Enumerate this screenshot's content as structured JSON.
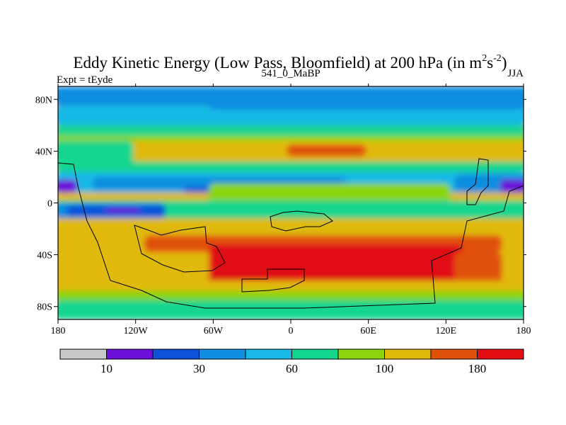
{
  "chart_data": {
    "type": "heatmap",
    "title": "Eddy Kinetic Energy (Low Pass, Bloomfield) at 200 hPa (in m",
    "title_units": {
      "sup1": "2",
      "mid": "s",
      "sup2": "-2",
      "close": ")"
    },
    "subtitle_center": "541_0_MaBP",
    "subtitle_left": "Expt = tEyde",
    "subtitle_right": "JJA",
    "x_ticks": [
      {
        "value": -180,
        "label": "180"
      },
      {
        "value": -120,
        "label": "120W"
      },
      {
        "value": -60,
        "label": "60W"
      },
      {
        "value": 0,
        "label": "0"
      },
      {
        "value": 60,
        "label": "60E"
      },
      {
        "value": 120,
        "label": "120E"
      },
      {
        "value": 180,
        "label": "180"
      }
    ],
    "y_ticks": [
      {
        "value": 80,
        "label": "80N"
      },
      {
        "value": 40,
        "label": "40N"
      },
      {
        "value": 0,
        "label": "0"
      },
      {
        "value": -40,
        "label": "40S"
      },
      {
        "value": -80,
        "label": "80S"
      }
    ],
    "xlim": [
      -180,
      180
    ],
    "ylim": [
      -90,
      90
    ],
    "levels_colors": [
      "#c8c8c8",
      "#6a10d8",
      "#0f50d9",
      "#118ee0",
      "#19b9e6",
      "#13d58e",
      "#8ad50d",
      "#e0b90b",
      "#e0510b",
      "#e00d12"
    ],
    "colorbar_labels": [
      {
        "after_box": 1,
        "label": "10"
      },
      {
        "after_box": 3,
        "label": "30"
      },
      {
        "after_box": 5,
        "label": "60"
      },
      {
        "after_box": 7,
        "label": "100"
      },
      {
        "after_box": 9,
        "label": "180"
      }
    ],
    "regions": [
      {
        "level": 7,
        "lon": [
          -180,
          180
        ],
        "lat": [
          -90,
          90
        ]
      },
      {
        "level": 3,
        "lon": [
          -180,
          180
        ],
        "lat": [
          75,
          90
        ]
      },
      {
        "level": 4,
        "lon": [
          -180,
          180
        ],
        "lat": [
          60,
          75
        ]
      },
      {
        "level": 5,
        "lon": [
          -180,
          180
        ],
        "lat": [
          52,
          60
        ]
      },
      {
        "level": 6,
        "lon": [
          -180,
          180
        ],
        "lat": [
          48,
          52
        ]
      },
      {
        "level": 3,
        "lon": [
          -60,
          180
        ],
        "lat": [
          72,
          86
        ]
      },
      {
        "level": 5,
        "lon": [
          -180,
          -125
        ],
        "lat": [
          32,
          48
        ]
      },
      {
        "level": 5,
        "lon": [
          -180,
          -125
        ],
        "lat": [
          30,
          36
        ]
      },
      {
        "level": 8,
        "lon": [
          0,
          55
        ],
        "lat": [
          36,
          45
        ]
      },
      {
        "level": 5,
        "lon": [
          -180,
          180
        ],
        "lat": [
          24,
          32
        ]
      },
      {
        "level": 4,
        "lon": [
          -180,
          180
        ],
        "lat": [
          8,
          24
        ]
      },
      {
        "level": 3,
        "lon": [
          -150,
          40
        ],
        "lat": [
          10,
          20
        ]
      },
      {
        "level": 3,
        "lon": [
          130,
          180
        ],
        "lat": [
          8,
          22
        ]
      },
      {
        "level": 1,
        "lon": [
          -180,
          -168
        ],
        "lat": [
          8,
          18
        ]
      },
      {
        "level": 1,
        "lon": [
          165,
          180
        ],
        "lat": [
          8,
          18
        ]
      },
      {
        "level": 2,
        "lon": [
          -80,
          -20
        ],
        "lat": [
          8,
          12
        ]
      },
      {
        "level": 6,
        "lon": [
          -60,
          120
        ],
        "lat": [
          -5,
          15
        ]
      },
      {
        "level": 5,
        "lon": [
          -180,
          180
        ],
        "lat": [
          -12,
          2
        ]
      },
      {
        "level": 3,
        "lon": [
          -180,
          -100
        ],
        "lat": [
          -12,
          0
        ]
      },
      {
        "level": 2,
        "lon": [
          -170,
          -100
        ],
        "lat": [
          -10,
          -2
        ]
      },
      {
        "level": 1,
        "lon": [
          -140,
          -120
        ],
        "lat": [
          -8,
          -4
        ]
      },
      {
        "level": 4,
        "lon": [
          -100,
          -40
        ],
        "lat": [
          -25,
          -12
        ]
      },
      {
        "level": 7,
        "lon": [
          -180,
          180
        ],
        "lat": [
          -40,
          -12
        ]
      },
      {
        "level": 8,
        "lon": [
          -110,
          160
        ],
        "lat": [
          -38,
          -25
        ]
      },
      {
        "level": 9,
        "lon": [
          -60,
          130
        ],
        "lat": [
          -62,
          -32
        ]
      },
      {
        "level": 8,
        "lon": [
          130,
          160
        ],
        "lat": [
          -62,
          -38
        ]
      },
      {
        "level": 7,
        "lon": [
          -180,
          180
        ],
        "lat": [
          -75,
          -60
        ]
      },
      {
        "level": 6,
        "lon": [
          -180,
          180
        ],
        "lat": [
          -75,
          -68
        ]
      },
      {
        "level": 5,
        "lon": [
          -180,
          180
        ],
        "lat": [
          -90,
          -75
        ]
      }
    ]
  }
}
